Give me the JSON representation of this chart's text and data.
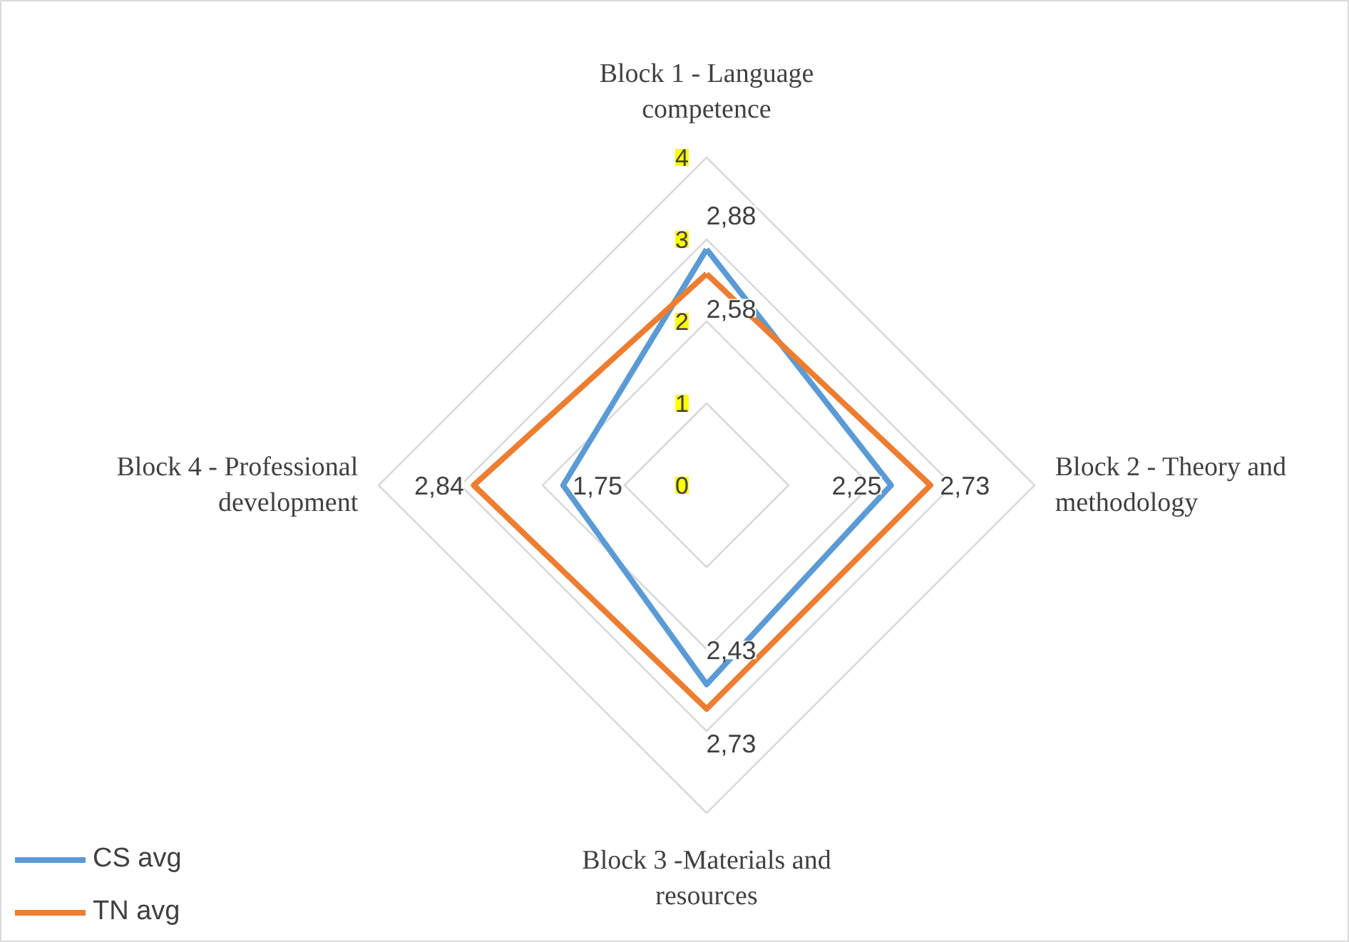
{
  "chart_data": {
    "type": "radar",
    "categories": [
      "Block 1 - Language competence",
      "Block 2 - Theory and methodology",
      "Block 3 -Materials and resources",
      "Block 4 - Professional development"
    ],
    "series": [
      {
        "name": "CS avg",
        "color": "#5b9bd5",
        "values": [
          2.88,
          2.25,
          2.43,
          1.75
        ],
        "value_labels": [
          "2,88",
          "2,25",
          "2,43",
          "1,75"
        ]
      },
      {
        "name": "TN avg",
        "color": "#ed7d31",
        "values": [
          2.58,
          2.73,
          2.73,
          2.84
        ],
        "value_labels": [
          "2,58",
          "2,73",
          "2,73",
          "2,84"
        ]
      }
    ],
    "ylim": [
      0,
      4
    ],
    "yticks": [
      {
        "value": 0,
        "label": "0"
      },
      {
        "value": 1,
        "label": "1"
      },
      {
        "value": 2,
        "label": "2"
      },
      {
        "value": 3,
        "label": "3"
      },
      {
        "value": 4,
        "label": "4"
      }
    ],
    "grid": true,
    "legend": "bottom left"
  }
}
